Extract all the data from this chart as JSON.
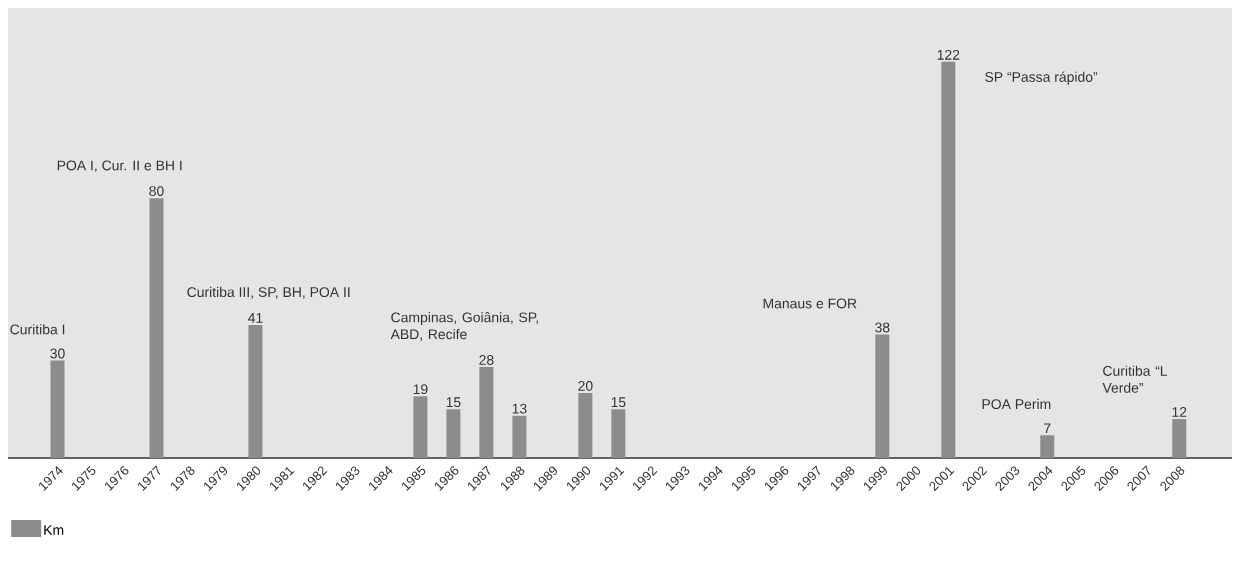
{
  "chart_data": {
    "type": "bar",
    "categories": [
      "1974",
      "1975",
      "1976",
      "1977",
      "1978",
      "1979",
      "1980",
      "1981",
      "1982",
      "1983",
      "1984",
      "1985",
      "1986",
      "1987",
      "1988",
      "1989",
      "1990",
      "1991",
      "1992",
      "1993",
      "1994",
      "1995",
      "1996",
      "1997",
      "1998",
      "1999",
      "2000",
      "2001",
      "2002",
      "2003",
      "2004",
      "2005",
      "2006",
      "2007",
      "2008"
    ],
    "series": [
      {
        "name": "Km",
        "color": "#8c8c8c",
        "values": [
          30,
          null,
          null,
          80,
          null,
          null,
          41,
          null,
          null,
          null,
          null,
          19,
          15,
          28,
          13,
          null,
          20,
          15,
          null,
          null,
          null,
          null,
          null,
          null,
          null,
          38,
          null,
          122,
          null,
          null,
          7,
          null,
          null,
          null,
          12
        ]
      }
    ],
    "data_labels": true,
    "legend": "bottom left",
    "annotations": [
      {
        "text": "Curitiba I",
        "x": "1974",
        "y": 30
      },
      {
        "text": "POA I, Cur. II e BH I",
        "x": "1977",
        "y": 80
      },
      {
        "text": "Curitiba III, SP, BH, POA II",
        "x": "1980",
        "y": 41
      },
      {
        "text": "Campinas, Goiânia, SP, ABD, Recife",
        "x": "1987",
        "y": 28
      },
      {
        "text": "Manaus e FOR",
        "x": "1999",
        "y": 38
      },
      {
        "text": "SP “Passa rápido”",
        "x": "2001",
        "y": 122
      },
      {
        "text": "POA Perim",
        "x": "2004",
        "y": 7
      },
      {
        "text": "Curitiba “L Verde”",
        "x": "2008",
        "y": 12
      }
    ]
  }
}
